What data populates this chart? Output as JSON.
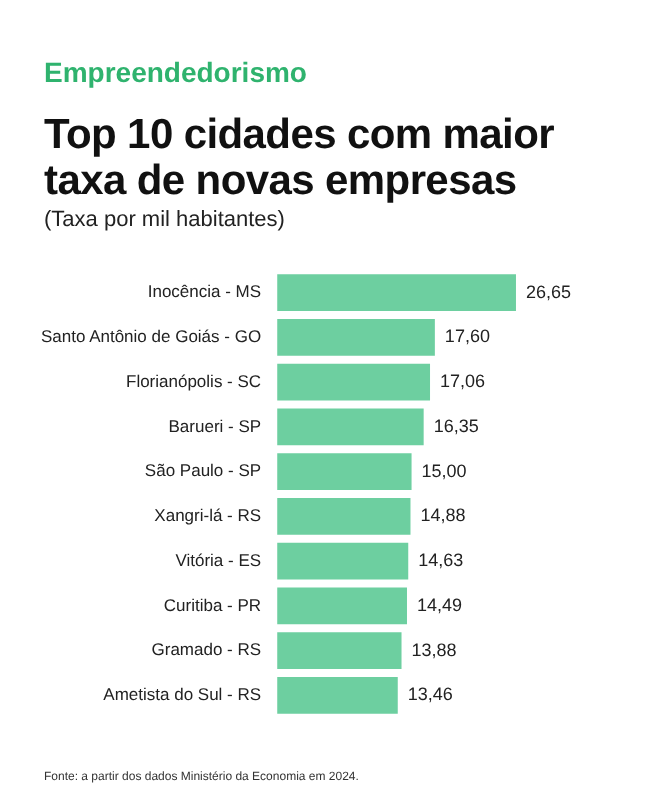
{
  "chart_data": {
    "type": "bar",
    "orientation": "horizontal",
    "subtitle": "Empreendedorismo",
    "title": "Top 10 cidades com maior taxa de novas empresas",
    "xlabel": "(Taxa por mil habitantes)",
    "categories": [
      "Inocência - MS",
      "Santo Antônio de Goiás - GO",
      "Florianópolis - SC",
      "Barueri - SP",
      "São Paulo - SP",
      "Xangri-lá - RS",
      "Vitória - ES",
      "Curitiba - PR",
      "Gramado - RS",
      "Ametista do Sul - RS"
    ],
    "values": [
      26.65,
      17.6,
      17.06,
      16.35,
      15.0,
      14.88,
      14.63,
      14.49,
      13.88,
      13.46
    ],
    "value_labels": [
      "26,65",
      "17,60",
      "17,06",
      "16,35",
      "15,00",
      "14,88",
      "14,63",
      "14,49",
      "13,88",
      "13,46"
    ],
    "color": "#6dcfa0",
    "tick_labels": "y",
    "grid": false,
    "legend": false,
    "annotations": [
      "Fonte: a partir dos dados Ministério da Economia em 2024."
    ]
  }
}
